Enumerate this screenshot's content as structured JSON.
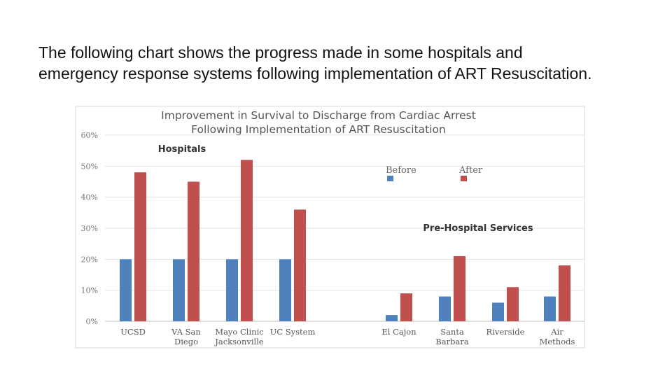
{
  "intro_text": "The following chart shows the progress made in some hospitals and emergency response systems following implementation of ART Resuscitation.",
  "chart_data": {
    "type": "bar",
    "title": "Improvement in Survival to Discharge from Cardiac Arrest",
    "subtitle": "Following Implementation of ART Resuscitation",
    "xlabel": "",
    "ylabel": "",
    "ylim": [
      0,
      60
    ],
    "y_ticks": [
      "0%",
      "10%",
      "20%",
      "30%",
      "40%",
      "50%",
      "60%"
    ],
    "grid": true,
    "legend_position": "top-right",
    "categories": [
      [
        "UCSD"
      ],
      [
        "VA San",
        "Diego"
      ],
      [
        "Mayo Clinic",
        "Jacksonville"
      ],
      [
        "UC System"
      ],
      [
        "El Cajon"
      ],
      [
        "Santa",
        "Barbara"
      ],
      [
        "Riverside"
      ],
      [
        "Air",
        "Methods"
      ]
    ],
    "groups": [
      {
        "label": "Hospitals",
        "category_indices": [
          0,
          1,
          2,
          3
        ]
      },
      {
        "label": "Pre-Hospital Services",
        "category_indices": [
          4,
          5,
          6,
          7
        ]
      }
    ],
    "series": [
      {
        "name": "Before",
        "color": "#4f81bd",
        "values": [
          20,
          20,
          20,
          20,
          2,
          8,
          6,
          8
        ]
      },
      {
        "name": "After",
        "color": "#c0504d",
        "values": [
          48,
          45,
          52,
          36,
          9,
          21,
          11,
          18
        ]
      }
    ]
  }
}
